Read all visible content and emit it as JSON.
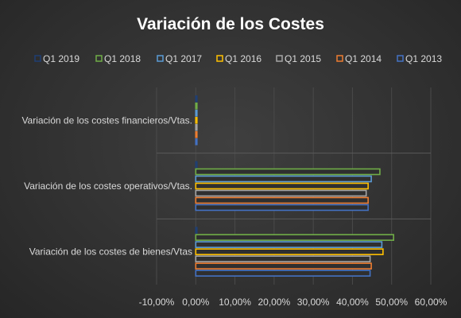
{
  "chart_data": {
    "type": "bar",
    "orientation": "horizontal",
    "title": "Variación de los Costes",
    "categories": [
      "Variación de los costes financieros/Vtas.",
      "Variación de los costes operativos/Vtas.",
      "Variación de los costes de bienes/Vtas"
    ],
    "series": [
      {
        "name": "Q1 2019",
        "color": "#1f3f73",
        "values": [
          0.0,
          0.0,
          0.0
        ]
      },
      {
        "name": "Q1 2018",
        "color": "#70ad47",
        "values": [
          0.2,
          47.0,
          50.5
        ]
      },
      {
        "name": "Q1 2017",
        "color": "#5b9bd5",
        "values": [
          0.2,
          44.8,
          47.5
        ]
      },
      {
        "name": "Q1 2016",
        "color": "#ffc000",
        "values": [
          0.2,
          44.0,
          47.8
        ]
      },
      {
        "name": "Q1 2015",
        "color": "#a5a5a5",
        "values": [
          0.2,
          43.5,
          44.5
        ]
      },
      {
        "name": "Q1 2014",
        "color": "#ed7d31",
        "values": [
          0.2,
          44.0,
          44.8
        ]
      },
      {
        "name": "Q1 2013",
        "color": "#4472c4",
        "values": [
          0.2,
          44.0,
          44.5
        ]
      }
    ],
    "xlim": [
      -10,
      60
    ],
    "xticks": [
      -10,
      0,
      10,
      20,
      30,
      40,
      50,
      60
    ],
    "xtick_labels": [
      "-10,00%",
      "0,00%",
      "10,00%",
      "20,00%",
      "30,00%",
      "40,00%",
      "50,00%",
      "60,00%"
    ],
    "xlabel": "",
    "ylabel": "",
    "grid": true,
    "legend_position": "top"
  }
}
